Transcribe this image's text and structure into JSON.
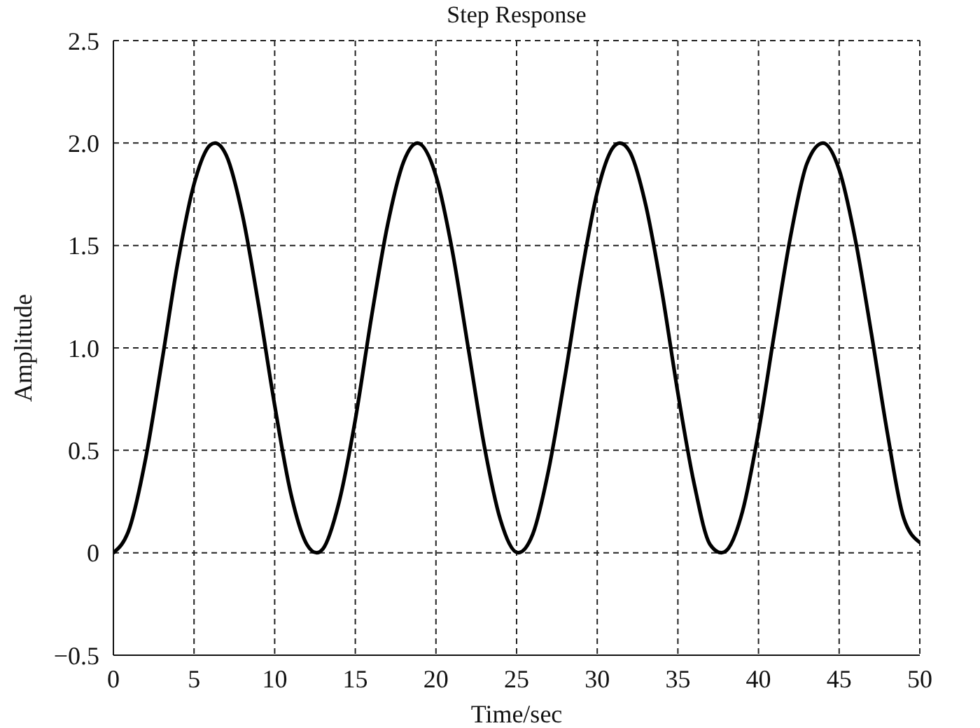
{
  "chart_data": {
    "type": "line",
    "title": "Step Response",
    "xlabel": "Time/sec",
    "ylabel": "Amplitude",
    "x": [
      0,
      1,
      2,
      3,
      4,
      5,
      6,
      6.3,
      7,
      8,
      9,
      10,
      11,
      12,
      12.6,
      13,
      14,
      15,
      16,
      17,
      18,
      18.85,
      20,
      21,
      22,
      23,
      24,
      25.1,
      26,
      27,
      28,
      29,
      30,
      31,
      31.4,
      32,
      33,
      34,
      35,
      36,
      37,
      37.7,
      38,
      39,
      40,
      41,
      42,
      43,
      44,
      45,
      46,
      47,
      48,
      49,
      50
    ],
    "series": [
      {
        "color": "#000000",
        "values": [
          0,
          0.12,
          0.46,
          0.93,
          1.42,
          1.8,
          1.99,
          2,
          1.94,
          1.65,
          1.21,
          0.72,
          0.29,
          0.04,
          0,
          0.02,
          0.25,
          0.65,
          1.15,
          1.6,
          1.91,
          2,
          1.84,
          1.48,
          1,
          0.52,
          0.16,
          0,
          0.09,
          0.41,
          0.86,
          1.35,
          1.76,
          1.98,
          2,
          1.96,
          1.7,
          1.28,
          0.78,
          0.34,
          0.04,
          0,
          0.01,
          0.2,
          0.59,
          1.08,
          1.55,
          1.9,
          2,
          1.87,
          1.53,
          1.07,
          0.58,
          0.17,
          0.05
        ]
      }
    ],
    "xlim": [
      0,
      50
    ],
    "xticks": [
      0,
      5,
      10,
      15,
      20,
      25,
      30,
      35,
      40,
      45,
      50
    ],
    "ylim": [
      -0.5,
      2.5
    ],
    "yticks": [
      {
        "value": -0.5,
        "label": "−0.5"
      },
      0,
      0.5,
      {
        "value": 1,
        "label": "1.0"
      },
      1.5,
      {
        "value": 2,
        "label": "2.0"
      },
      2.5
    ],
    "grid": true,
    "line_style": "solid"
  }
}
